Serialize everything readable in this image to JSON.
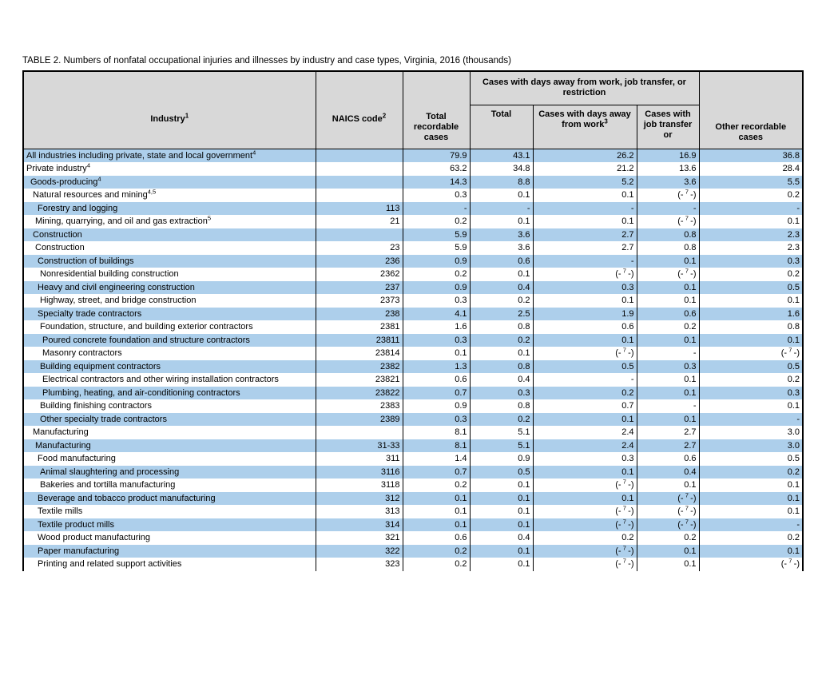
{
  "title": "TABLE 2. Numbers of nonfatal occupational injuries and illnesses by industry and case types, Virginia, 2016 (thousands)",
  "table": {
    "colors": {
      "row_alt": "#adcfeb",
      "header_bg": "#d8d8d8",
      "border": "#000000"
    },
    "header": {
      "industry": {
        "label": "Industry",
        "sup": "1"
      },
      "naics": {
        "label": "NAICS code",
        "sup": "2"
      },
      "total_recordable": "Total recordable cases",
      "dart_group": "Cases with days away from work, job transfer, or restriction",
      "dart_total": "Total",
      "days_away": {
        "label": "Cases with days away from work",
        "sup": "3"
      },
      "job_transfer": "Cases with job transfer or",
      "other_recordable": "Other recordable cases"
    },
    "footnote_token": "(-7-)",
    "rows": [
      {
        "label": "All industries including private, state and local government",
        "sup": "4",
        "indent": 0,
        "naics": "",
        "values": [
          "79.9",
          "43.1",
          "26.2",
          "16.9",
          "36.8"
        ]
      },
      {
        "label": "Private industry",
        "sup": "4",
        "indent": 0,
        "naics": "",
        "values": [
          "63.2",
          "34.8",
          "21.2",
          "13.6",
          "28.4"
        ]
      },
      {
        "label": "Goods-producing",
        "sup": "4",
        "indent": 1,
        "naics": "",
        "values": [
          "14.3",
          "8.8",
          "5.2",
          "3.6",
          "5.5"
        ]
      },
      {
        "label": "Natural resources and mining",
        "sup": "4,5",
        "indent": 2,
        "naics": "",
        "values": [
          "0.3",
          "0.1",
          "0.1",
          "(-7-)",
          "0.2"
        ]
      },
      {
        "label": "Forestry and logging",
        "sup": "",
        "indent": 4,
        "naics": "113",
        "values": [
          "-",
          "-",
          "-",
          "-",
          "-"
        ]
      },
      {
        "label": "Mining, quarrying, and oil and gas extraction",
        "sup": "5",
        "indent": 3,
        "naics": "21",
        "values": [
          "0.2",
          "0.1",
          "0.1",
          "(-7-)",
          "0.1"
        ]
      },
      {
        "label": "Construction",
        "sup": "",
        "indent": 2,
        "naics": "",
        "values": [
          "5.9",
          "3.6",
          "2.7",
          "0.8",
          "2.3"
        ]
      },
      {
        "label": "Construction",
        "sup": "",
        "indent": 3,
        "naics": "23",
        "values": [
          "5.9",
          "3.6",
          "2.7",
          "0.8",
          "2.3"
        ]
      },
      {
        "label": "Construction of buildings",
        "sup": "",
        "indent": 4,
        "naics": "236",
        "values": [
          "0.9",
          "0.6",
          "-",
          "0.1",
          "0.3"
        ]
      },
      {
        "label": "Nonresidential building construction",
        "sup": "",
        "indent": 5,
        "naics": "2362",
        "values": [
          "0.2",
          "0.1",
          "(-7-)",
          "(-7-)",
          "0.2"
        ]
      },
      {
        "label": "Heavy and civil engineering construction",
        "sup": "",
        "indent": 4,
        "naics": "237",
        "values": [
          "0.9",
          "0.4",
          "0.3",
          "0.1",
          "0.5"
        ]
      },
      {
        "label": "Highway, street, and bridge construction",
        "sup": "",
        "indent": 5,
        "naics": "2373",
        "values": [
          "0.3",
          "0.2",
          "0.1",
          "0.1",
          "0.1"
        ]
      },
      {
        "label": "Specialty trade contractors",
        "sup": "",
        "indent": 4,
        "naics": "238",
        "values": [
          "4.1",
          "2.5",
          "1.9",
          "0.6",
          "1.6"
        ]
      },
      {
        "label": "Foundation, structure, and building exterior contractors",
        "sup": "",
        "indent": 5,
        "naics": "2381",
        "values": [
          "1.6",
          "0.8",
          "0.6",
          "0.2",
          "0.8"
        ]
      },
      {
        "label": "Poured concrete foundation and structure contractors",
        "sup": "",
        "indent": 6,
        "naics": "23811",
        "values": [
          "0.3",
          "0.2",
          "0.1",
          "0.1",
          "0.1"
        ]
      },
      {
        "label": "Masonry contractors",
        "sup": "",
        "indent": 6,
        "naics": "23814",
        "values": [
          "0.1",
          "0.1",
          "(-7-)",
          "-",
          "(-7-)"
        ]
      },
      {
        "label": "Building equipment contractors",
        "sup": "",
        "indent": 5,
        "naics": "2382",
        "values": [
          "1.3",
          "0.8",
          "0.5",
          "0.3",
          "0.5"
        ]
      },
      {
        "label": "Electrical contractors and other wiring installation contractors",
        "sup": "",
        "indent": 6,
        "naics": "23821",
        "values": [
          "0.6",
          "0.4",
          "-",
          "0.1",
          "0.2"
        ]
      },
      {
        "label": "Plumbing, heating, and air-conditioning contractors",
        "sup": "",
        "indent": 6,
        "naics": "23822",
        "values": [
          "0.7",
          "0.3",
          "0.2",
          "0.1",
          "0.3"
        ]
      },
      {
        "label": "Building finishing contractors",
        "sup": "",
        "indent": 5,
        "naics": "2383",
        "values": [
          "0.9",
          "0.8",
          "0.7",
          "-",
          "0.1"
        ]
      },
      {
        "label": "Other specialty trade contractors",
        "sup": "",
        "indent": 5,
        "naics": "2389",
        "values": [
          "0.3",
          "0.2",
          "0.1",
          "0.1",
          "-"
        ]
      },
      {
        "label": "Manufacturing",
        "sup": "",
        "indent": 2,
        "naics": "",
        "values": [
          "8.1",
          "5.1",
          "2.4",
          "2.7",
          "3.0"
        ]
      },
      {
        "label": "Manufacturing",
        "sup": "",
        "indent": 3,
        "naics": "31-33",
        "values": [
          "8.1",
          "5.1",
          "2.4",
          "2.7",
          "3.0"
        ]
      },
      {
        "label": "Food manufacturing",
        "sup": "",
        "indent": 4,
        "naics": "311",
        "values": [
          "1.4",
          "0.9",
          "0.3",
          "0.6",
          "0.5"
        ]
      },
      {
        "label": "Animal slaughtering and processing",
        "sup": "",
        "indent": 5,
        "naics": "3116",
        "values": [
          "0.7",
          "0.5",
          "0.1",
          "0.4",
          "0.2"
        ]
      },
      {
        "label": "Bakeries and tortilla manufacturing",
        "sup": "",
        "indent": 5,
        "naics": "3118",
        "values": [
          "0.2",
          "0.1",
          "(-7-)",
          "0.1",
          "0.1"
        ]
      },
      {
        "label": "Beverage and tobacco product manufacturing",
        "sup": "",
        "indent": 4,
        "naics": "312",
        "values": [
          "0.1",
          "0.1",
          "0.1",
          "(-7-)",
          "0.1"
        ]
      },
      {
        "label": "Textile mills",
        "sup": "",
        "indent": 4,
        "naics": "313",
        "values": [
          "0.1",
          "0.1",
          "(-7-)",
          "(-7-)",
          "0.1"
        ]
      },
      {
        "label": "Textile product mills",
        "sup": "",
        "indent": 4,
        "naics": "314",
        "values": [
          "0.1",
          "0.1",
          "(-7-)",
          "(-7-)",
          "-"
        ]
      },
      {
        "label": "Wood product manufacturing",
        "sup": "",
        "indent": 4,
        "naics": "321",
        "values": [
          "0.6",
          "0.4",
          "0.2",
          "0.2",
          "0.2"
        ]
      },
      {
        "label": "Paper manufacturing",
        "sup": "",
        "indent": 4,
        "naics": "322",
        "values": [
          "0.2",
          "0.1",
          "(-7-)",
          "0.1",
          "0.1"
        ]
      },
      {
        "label": "Printing and related support activities",
        "sup": "",
        "indent": 4,
        "naics": "323",
        "values": [
          "0.2",
          "0.1",
          "(-7-)",
          "0.1",
          "(-7-)"
        ]
      }
    ]
  }
}
